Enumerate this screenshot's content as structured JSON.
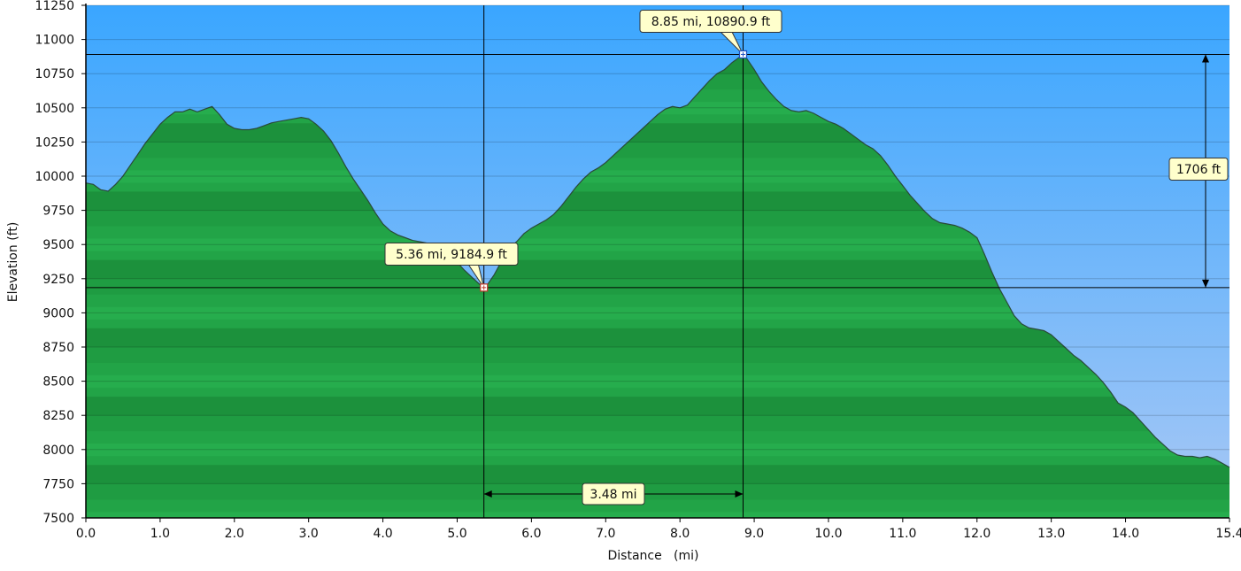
{
  "chart_data": {
    "type": "area",
    "title": "",
    "xlabel": "Distance   (mi)",
    "ylabel": "Elevation (ft)",
    "xlim": [
      0,
      15.4
    ],
    "ylim": [
      7500,
      11250
    ],
    "x_ticks": [
      0.0,
      1.0,
      2.0,
      3.0,
      4.0,
      5.0,
      6.0,
      7.0,
      8.0,
      9.0,
      10.0,
      11.0,
      12.0,
      13.0,
      14.0,
      15.4
    ],
    "x_tick_labels": [
      "0.0",
      "1.0",
      "2.0",
      "3.0",
      "4.0",
      "5.0",
      "6.0",
      "7.0",
      "8.0",
      "9.0",
      "10.0",
      "11.0",
      "12.0",
      "13.0",
      "14.0",
      "15.4"
    ],
    "y_ticks": [
      7500,
      7750,
      8000,
      8250,
      8500,
      8750,
      9000,
      9250,
      9500,
      9750,
      10000,
      10250,
      10500,
      10750,
      11000,
      11250
    ],
    "y_tick_labels": [
      "7500",
      "7750",
      "8000",
      "8250",
      "8500",
      "8750",
      "9000",
      "9250",
      "9500",
      "9750",
      "10000",
      "10250",
      "10500",
      "10750",
      "11000",
      "11250"
    ],
    "grid": true,
    "colors": {
      "sky_top": "#3aa6ff",
      "sky_bottom": "#a9c8f5",
      "terrain": "#22a447",
      "terrain_dark": "#137a2f",
      "outline": "#2a4a3a",
      "callout_fill": "#ffffcc"
    },
    "series": [
      {
        "x": [
          0.0,
          0.1,
          0.2,
          0.3,
          0.4,
          0.5,
          0.6,
          0.7,
          0.8,
          0.9,
          1.0,
          1.1,
          1.2,
          1.3,
          1.4,
          1.5,
          1.6,
          1.7,
          1.8,
          1.9,
          2.0,
          2.1,
          2.2,
          2.3,
          2.4,
          2.5,
          2.6,
          2.7,
          2.8,
          2.9,
          3.0,
          3.1,
          3.2,
          3.3,
          3.4,
          3.5,
          3.6,
          3.7,
          3.8,
          3.9,
          4.0,
          4.1,
          4.2,
          4.3,
          4.4,
          4.5,
          4.6,
          4.7,
          4.8,
          4.9,
          5.0,
          5.1,
          5.2,
          5.3,
          5.36,
          5.4,
          5.5,
          5.6,
          5.7,
          5.8,
          5.9,
          6.0,
          6.1,
          6.2,
          6.3,
          6.4,
          6.5,
          6.6,
          6.7,
          6.8,
          6.9,
          7.0,
          7.1,
          7.2,
          7.3,
          7.4,
          7.5,
          7.6,
          7.7,
          7.8,
          7.9,
          8.0,
          8.1,
          8.2,
          8.3,
          8.4,
          8.5,
          8.6,
          8.7,
          8.75,
          8.8,
          8.85,
          8.9,
          9.0,
          9.1,
          9.2,
          9.3,
          9.4,
          9.5,
          9.6,
          9.7,
          9.8,
          9.9,
          10.0,
          10.1,
          10.2,
          10.3,
          10.4,
          10.5,
          10.6,
          10.7,
          10.8,
          10.9,
          11.0,
          11.1,
          11.2,
          11.3,
          11.4,
          11.5,
          11.6,
          11.7,
          11.8,
          11.9,
          12.0,
          12.1,
          12.2,
          12.3,
          12.4,
          12.5,
          12.6,
          12.7,
          12.8,
          12.9,
          13.0,
          13.1,
          13.2,
          13.3,
          13.4,
          13.5,
          13.6,
          13.7,
          13.8,
          13.9,
          14.0,
          14.1,
          14.2,
          14.3,
          14.4,
          14.5,
          14.6,
          14.7,
          14.8,
          14.9,
          15.0,
          15.1,
          15.2,
          15.3,
          15.4
        ],
        "y": [
          9950,
          9940,
          9900,
          9890,
          9940,
          10000,
          10080,
          10160,
          10240,
          10310,
          10380,
          10430,
          10470,
          10470,
          10490,
          10470,
          10490,
          10510,
          10450,
          10380,
          10350,
          10340,
          10340,
          10350,
          10370,
          10390,
          10400,
          10410,
          10420,
          10430,
          10420,
          10380,
          10330,
          10260,
          10170,
          10070,
          9980,
          9900,
          9820,
          9730,
          9650,
          9600,
          9570,
          9550,
          9530,
          9520,
          9510,
          9500,
          9470,
          9420,
          9370,
          9310,
          9260,
          9210,
          9185,
          9200,
          9280,
          9380,
          9470,
          9520,
          9580,
          9620,
          9650,
          9680,
          9720,
          9780,
          9850,
          9920,
          9980,
          10030,
          10060,
          10100,
          10150,
          10200,
          10250,
          10300,
          10350,
          10400,
          10450,
          10490,
          10510,
          10500,
          10520,
          10580,
          10640,
          10700,
          10750,
          10780,
          10830,
          10850,
          10870,
          10891,
          10860,
          10780,
          10690,
          10620,
          10560,
          10510,
          10480,
          10470,
          10480,
          10460,
          10430,
          10400,
          10380,
          10350,
          10310,
          10270,
          10230,
          10200,
          10150,
          10080,
          10000,
          9930,
          9860,
          9800,
          9740,
          9690,
          9660,
          9650,
          9640,
          9620,
          9590,
          9550,
          9430,
          9300,
          9180,
          9080,
          8980,
          8920,
          8890,
          8880,
          8870,
          8840,
          8790,
          8740,
          8690,
          8650,
          8600,
          8550,
          8490,
          8420,
          8340,
          8310,
          8270,
          8210,
          8150,
          8090,
          8040,
          7990,
          7960,
          7950,
          7950,
          7940,
          7950,
          7930,
          7900,
          7870
        ]
      }
    ],
    "annotations": [
      {
        "text": "5.36 mi, 9184.9 ft",
        "x": 5.36,
        "y": 9184.9,
        "marker": "low"
      },
      {
        "text": "8.85 mi, 10890.9 ft",
        "x": 8.85,
        "y": 10890.9,
        "marker": "high"
      },
      {
        "text": "3.48 mi",
        "kind": "horizontal-measure",
        "x_from": 5.36,
        "x_to": 8.85
      },
      {
        "text": "1706 ft",
        "kind": "vertical-measure",
        "y_from": 9184.9,
        "y_to": 10890.9
      }
    ]
  }
}
